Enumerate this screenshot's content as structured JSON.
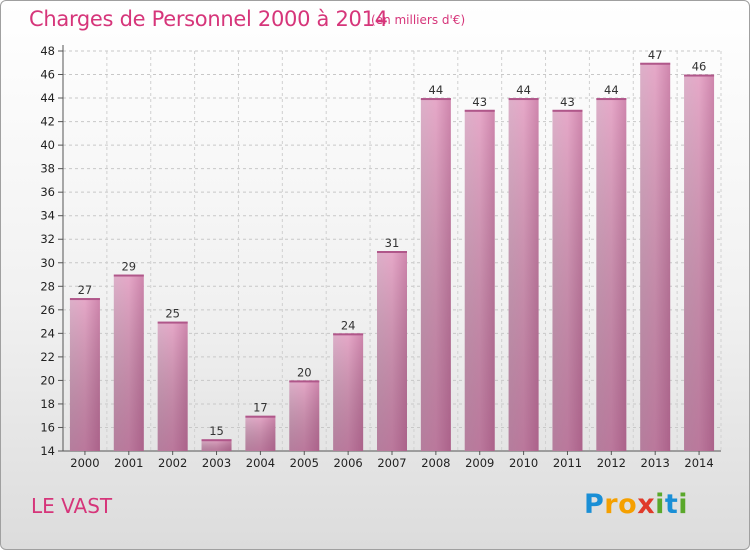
{
  "title": "Charges de Personnel 2000 à 2014",
  "subtitle": "(en milliers d'€)",
  "commune": "LE VAST",
  "logo": {
    "text": "Proxiti",
    "letters": [
      {
        "ch": "P",
        "color": "#1a8fd6"
      },
      {
        "ch": "r",
        "color": "#f5a000"
      },
      {
        "ch": "o",
        "color": "#f5a000"
      },
      {
        "ch": "x",
        "color": "#e03a2a"
      },
      {
        "ch": "i",
        "color": "#5aa82b"
      },
      {
        "ch": "t",
        "color": "#1a8fd6"
      },
      {
        "ch": "i",
        "color": "#5aa82b"
      }
    ]
  },
  "chart_data": {
    "type": "bar",
    "title": "Charges de Personnel 2000 à 2014",
    "subtitle": "(en milliers d'€)",
    "categories": [
      "2000",
      "2001",
      "2002",
      "2003",
      "2004",
      "2005",
      "2006",
      "2007",
      "2008",
      "2009",
      "2010",
      "2011",
      "2012",
      "2013",
      "2014"
    ],
    "values": [
      27,
      29,
      25,
      15,
      17,
      20,
      24,
      31,
      44,
      43,
      44,
      43,
      44,
      47,
      46
    ],
    "ylim": [
      14,
      48
    ],
    "yticks": [
      14,
      16,
      18,
      20,
      22,
      24,
      26,
      28,
      30,
      32,
      34,
      36,
      38,
      40,
      42,
      44,
      46,
      48
    ],
    "grid": true,
    "bar_color": "#c8779f",
    "legend": "none"
  }
}
